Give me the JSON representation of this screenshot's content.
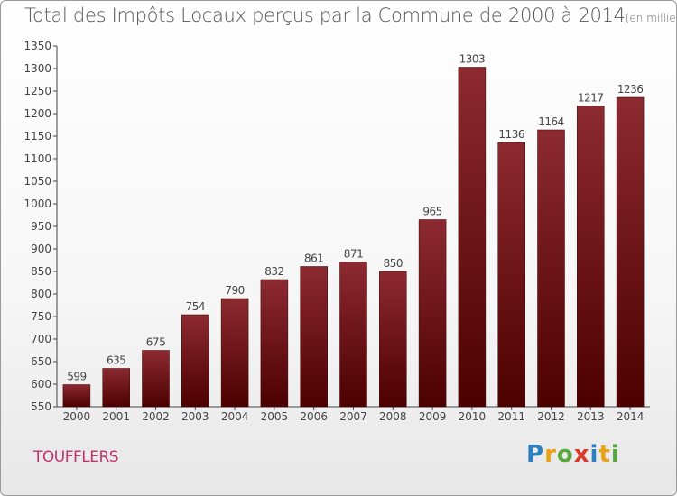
{
  "header": {
    "title": "Total des Impôts Locaux perçus par la Commune de 2000 à 2014",
    "unit": "(en milliers d'€)"
  },
  "commune": "TOUFFLERS",
  "brand": {
    "text": "Proxiti",
    "colors": [
      "#2d7fc1",
      "#e8a21a",
      "#5aa83c",
      "#d83a2a"
    ]
  },
  "colors": {
    "bar_top": "#8c2a31",
    "bar_bottom": "#4d0000"
  },
  "chart_data": {
    "type": "bar",
    "title": "Total des Impôts Locaux perçus par la Commune de 2000 à 2014",
    "xlabel": "",
    "ylabel": "(en milliers d'€)",
    "ylim": [
      550,
      1350
    ],
    "yticks": [
      550,
      600,
      650,
      700,
      750,
      800,
      850,
      900,
      950,
      1000,
      1050,
      1100,
      1150,
      1200,
      1250,
      1300,
      1350
    ],
    "categories": [
      "2000",
      "2001",
      "2002",
      "2003",
      "2004",
      "2005",
      "2006",
      "2007",
      "2008",
      "2009",
      "2010",
      "2011",
      "2012",
      "2013",
      "2014"
    ],
    "values": [
      599,
      635,
      675,
      754,
      790,
      832,
      861,
      871,
      850,
      965,
      1303,
      1136,
      1164,
      1217,
      1236
    ],
    "grid": false,
    "legend": "none"
  }
}
